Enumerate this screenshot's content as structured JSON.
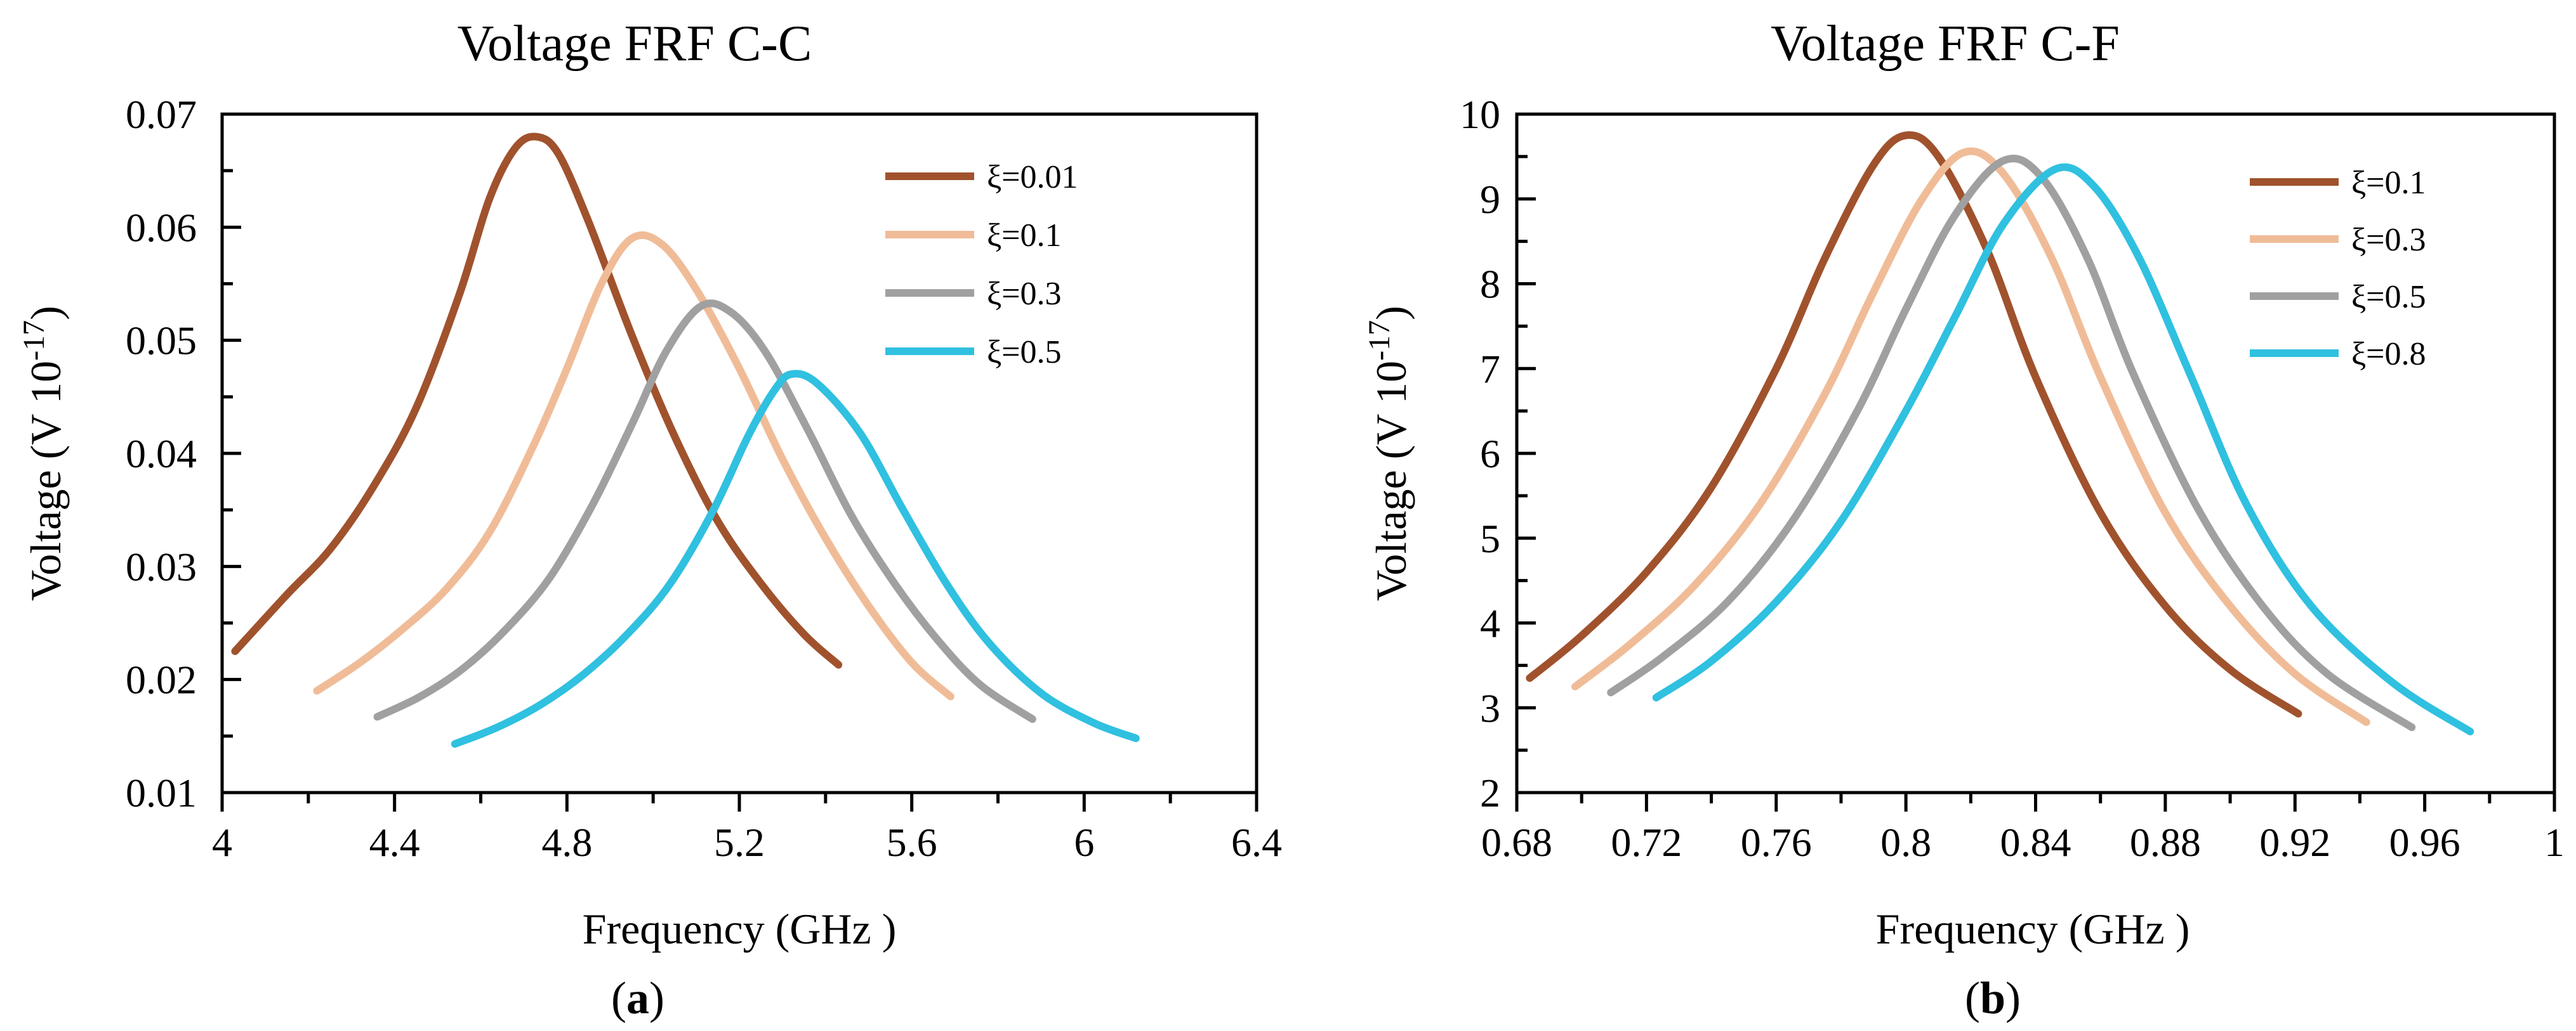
{
  "chart_data": [
    {
      "type": "line",
      "title": "Voltage  FRF  C-C",
      "xlabel": "Frequency (GHz )",
      "ylabel": "Voltage  (V 10-17)",
      "ylabel_base": "Voltage  (V 10",
      "ylabel_exp": "-17",
      "ylabel_close": ")",
      "panel_open": "(",
      "panel_letter": "a",
      "panel_close": ")",
      "xlim": [
        4,
        6.4
      ],
      "ylim": [
        0.01,
        0.07
      ],
      "xticks": [
        4,
        4.4,
        4.8,
        5.2,
        5.6,
        6,
        6.4
      ],
      "xtick_labels": [
        "4",
        "4.4",
        "4.8",
        "5.2",
        "5.6",
        "6",
        "6.4"
      ],
      "xminor": [
        4.2,
        4.6,
        5.0,
        5.4,
        5.8,
        6.2
      ],
      "yticks": [
        0.01,
        0.02,
        0.03,
        0.04,
        0.05,
        0.06,
        0.07
      ],
      "ytick_labels": [
        "0.01",
        "0.02",
        "0.03",
        "0.04",
        "0.05",
        "0.06",
        "0.07"
      ],
      "yminor": [
        0.015,
        0.025,
        0.035,
        0.045,
        0.055,
        0.065
      ],
      "legend_position": "top-right",
      "series": [
        {
          "name": "ξ=0.01",
          "color": "#A0522D",
          "x": [
            4.03,
            4.15,
            4.25,
            4.35,
            4.45,
            4.55,
            4.62,
            4.68,
            4.73,
            4.78,
            4.85,
            4.95,
            5.05,
            5.15,
            5.25,
            5.35,
            5.43
          ],
          "y": [
            0.0225,
            0.0275,
            0.0315,
            0.037,
            0.044,
            0.054,
            0.0625,
            0.067,
            0.068,
            0.0665,
            0.0605,
            0.0505,
            0.0415,
            0.034,
            0.0285,
            0.024,
            0.0213
          ]
        },
        {
          "name": "ξ=0.1",
          "color": "#F0BC98",
          "x": [
            4.22,
            4.32,
            4.42,
            4.52,
            4.62,
            4.72,
            4.8,
            4.88,
            4.95,
            5.02,
            5.1,
            5.2,
            5.3,
            5.4,
            5.5,
            5.6,
            5.69
          ],
          "y": [
            0.019,
            0.0215,
            0.0245,
            0.028,
            0.033,
            0.0405,
            0.0475,
            0.055,
            0.059,
            0.0585,
            0.0545,
            0.0475,
            0.0395,
            0.0325,
            0.0265,
            0.0215,
            0.0185
          ]
        },
        {
          "name": "ξ=0.3",
          "color": "#A0A0A0",
          "x": [
            4.36,
            4.46,
            4.56,
            4.66,
            4.76,
            4.86,
            4.95,
            5.03,
            5.11,
            5.18,
            5.26,
            5.36,
            5.46,
            5.56,
            5.66,
            5.76,
            5.88
          ],
          "y": [
            0.0167,
            0.0185,
            0.021,
            0.0245,
            0.029,
            0.0355,
            0.0425,
            0.049,
            0.053,
            0.0525,
            0.049,
            0.042,
            0.0345,
            0.0285,
            0.0235,
            0.0195,
            0.0165
          ]
        },
        {
          "name": "ξ=0.5",
          "color": "#30C0E0",
          "x": [
            4.54,
            4.64,
            4.74,
            4.84,
            4.94,
            5.04,
            5.14,
            5.22,
            5.28,
            5.32,
            5.38,
            5.48,
            5.58,
            5.68,
            5.78,
            5.9,
            6.02,
            6.12
          ],
          "y": [
            0.0143,
            0.0158,
            0.0178,
            0.0205,
            0.024,
            0.0285,
            0.035,
            0.0415,
            0.0455,
            0.047,
            0.0462,
            0.0418,
            0.035,
            0.0285,
            0.0232,
            0.0188,
            0.0162,
            0.0148
          ]
        }
      ]
    },
    {
      "type": "line",
      "title": "Voltage  FRF  C-F",
      "xlabel": "Frequency (GHz )",
      "ylabel": "Voltage  (V 10-17)",
      "ylabel_base": "Voltage  (V 10",
      "ylabel_exp": "-17",
      "ylabel_close": ")",
      "panel_open": "(",
      "panel_letter": "b",
      "panel_close": ")",
      "xlim": [
        0.68,
        1.0
      ],
      "ylim": [
        2,
        10
      ],
      "xticks": [
        0.68,
        0.72,
        0.76,
        0.8,
        0.84,
        0.88,
        0.92,
        0.96,
        1.0
      ],
      "xtick_labels": [
        "0.68",
        "0.72",
        "0.76",
        "0.8",
        "0.84",
        "0.88",
        "0.92",
        "0.96",
        "1"
      ],
      "xminor": [
        0.7,
        0.74,
        0.78,
        0.82,
        0.86,
        0.9,
        0.94,
        0.98
      ],
      "yticks": [
        2,
        3,
        4,
        5,
        6,
        7,
        8,
        9,
        10
      ],
      "ytick_labels": [
        "2",
        "3",
        "4",
        "5",
        "6",
        "7",
        "8",
        "9",
        "10"
      ],
      "yminor": [
        2.5,
        3.5,
        4.5,
        5.5,
        6.5,
        7.5,
        8.5,
        9.5
      ],
      "legend_position": "top-right",
      "series": [
        {
          "name": "ξ=0.1",
          "color": "#A0522D",
          "x": [
            0.684,
            0.7,
            0.72,
            0.74,
            0.76,
            0.775,
            0.79,
            0.8,
            0.81,
            0.825,
            0.84,
            0.86,
            0.88,
            0.9,
            0.921
          ],
          "y": [
            3.35,
            3.85,
            4.6,
            5.6,
            7.0,
            8.3,
            9.4,
            9.75,
            9.5,
            8.4,
            6.9,
            5.3,
            4.2,
            3.45,
            2.93
          ]
        },
        {
          "name": "ξ=0.3",
          "color": "#F0BC98",
          "x": [
            0.698,
            0.715,
            0.735,
            0.755,
            0.775,
            0.79,
            0.805,
            0.818,
            0.83,
            0.845,
            0.86,
            0.88,
            0.9,
            0.92,
            0.942
          ],
          "y": [
            3.25,
            3.75,
            4.45,
            5.4,
            6.7,
            7.9,
            9.0,
            9.55,
            9.3,
            8.3,
            6.9,
            5.3,
            4.2,
            3.4,
            2.83
          ]
        },
        {
          "name": "ξ=0.5",
          "color": "#A0A0A0",
          "x": [
            0.709,
            0.725,
            0.745,
            0.765,
            0.785,
            0.8,
            0.815,
            0.83,
            0.842,
            0.856,
            0.87,
            0.89,
            0.91,
            0.93,
            0.956
          ],
          "y": [
            3.18,
            3.6,
            4.25,
            5.2,
            6.5,
            7.7,
            8.8,
            9.45,
            9.25,
            8.3,
            6.95,
            5.35,
            4.2,
            3.4,
            2.77
          ]
        },
        {
          "name": "ξ=0.8",
          "color": "#30C0E0",
          "x": [
            0.723,
            0.74,
            0.76,
            0.78,
            0.8,
            0.815,
            0.83,
            0.846,
            0.858,
            0.872,
            0.888,
            0.905,
            0.925,
            0.95,
            0.974
          ],
          "y": [
            3.12,
            3.55,
            4.25,
            5.2,
            6.5,
            7.6,
            8.7,
            9.35,
            9.15,
            8.3,
            6.9,
            5.4,
            4.2,
            3.3,
            2.72
          ]
        }
      ]
    }
  ]
}
